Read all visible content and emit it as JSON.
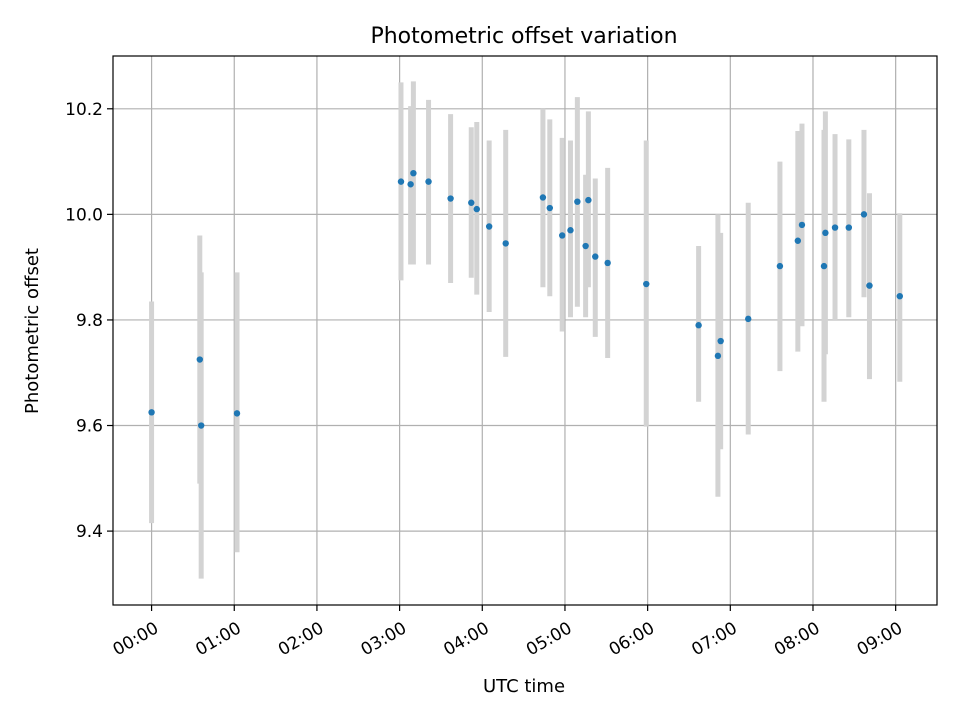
{
  "chart_data": {
    "type": "scatter",
    "title": "Photometric offset variation",
    "xlabel": "UTC time",
    "ylabel": "Photometric offset",
    "x_unit": "hours UTC",
    "xlim": [
      "-0:28",
      "9:30"
    ],
    "ylim": [
      9.26,
      10.3
    ],
    "x_ticks": [
      "00:00",
      "01:00",
      "02:00",
      "03:00",
      "04:00",
      "05:00",
      "06:00",
      "07:00",
      "08:00",
      "09:00"
    ],
    "y_ticks": [
      "9.4",
      "9.6",
      "9.8",
      "10.0",
      "10.2"
    ],
    "grid": true,
    "colors": {
      "point": "#1f77b4",
      "errorbar": "#d3d3d3",
      "grid": "#b0b0b0",
      "axes": "#000000"
    },
    "points": [
      {
        "x": "0:00",
        "y": 9.625,
        "ylo": 9.415,
        "yhi": 9.835
      },
      {
        "x": "0:35",
        "y": 9.725,
        "ylo": 9.49,
        "yhi": 9.96
      },
      {
        "x": "0:36",
        "y": 9.6,
        "ylo": 9.31,
        "yhi": 9.89
      },
      {
        "x": "1:02",
        "y": 9.623,
        "ylo": 9.36,
        "yhi": 9.89
      },
      {
        "x": "3:01",
        "y": 10.062,
        "ylo": 9.875,
        "yhi": 10.25
      },
      {
        "x": "3:08",
        "y": 10.057,
        "ylo": 9.905,
        "yhi": 10.205
      },
      {
        "x": "3:10",
        "y": 10.078,
        "ylo": 9.905,
        "yhi": 10.252
      },
      {
        "x": "3:21",
        "y": 10.062,
        "ylo": 9.905,
        "yhi": 10.217
      },
      {
        "x": "3:37",
        "y": 10.03,
        "ylo": 9.87,
        "yhi": 10.19
      },
      {
        "x": "3:52",
        "y": 10.022,
        "ylo": 9.88,
        "yhi": 10.165
      },
      {
        "x": "3:56",
        "y": 10.01,
        "ylo": 9.848,
        "yhi": 10.175
      },
      {
        "x": "4:05",
        "y": 9.977,
        "ylo": 9.815,
        "yhi": 10.14
      },
      {
        "x": "4:17",
        "y": 9.945,
        "ylo": 9.73,
        "yhi": 10.16
      },
      {
        "x": "4:44",
        "y": 10.032,
        "ylo": 9.862,
        "yhi": 10.2
      },
      {
        "x": "4:49",
        "y": 10.012,
        "ylo": 9.845,
        "yhi": 10.18
      },
      {
        "x": "4:58",
        "y": 9.96,
        "ylo": 9.778,
        "yhi": 10.145
      },
      {
        "x": "5:04",
        "y": 9.97,
        "ylo": 9.805,
        "yhi": 10.14
      },
      {
        "x": "5:09",
        "y": 10.024,
        "ylo": 9.825,
        "yhi": 10.222
      },
      {
        "x": "5:15",
        "y": 9.94,
        "ylo": 9.805,
        "yhi": 10.075
      },
      {
        "x": "5:17",
        "y": 10.027,
        "ylo": 9.862,
        "yhi": 10.195
      },
      {
        "x": "5:22",
        "y": 9.92,
        "ylo": 9.768,
        "yhi": 10.068
      },
      {
        "x": "5:31",
        "y": 9.908,
        "ylo": 9.728,
        "yhi": 10.088
      },
      {
        "x": "5:59",
        "y": 9.868,
        "ylo": 9.598,
        "yhi": 10.14
      },
      {
        "x": "6:37",
        "y": 9.79,
        "ylo": 9.645,
        "yhi": 9.94
      },
      {
        "x": "6:51",
        "y": 9.732,
        "ylo": 9.465,
        "yhi": 10.0
      },
      {
        "x": "6:53",
        "y": 9.76,
        "ylo": 9.555,
        "yhi": 9.965
      },
      {
        "x": "7:13",
        "y": 9.802,
        "ylo": 9.583,
        "yhi": 10.022
      },
      {
        "x": "7:36",
        "y": 9.902,
        "ylo": 9.703,
        "yhi": 10.1
      },
      {
        "x": "7:49",
        "y": 9.95,
        "ylo": 9.74,
        "yhi": 10.158
      },
      {
        "x": "7:52",
        "y": 9.98,
        "ylo": 9.788,
        "yhi": 10.172
      },
      {
        "x": "8:08",
        "y": 9.902,
        "ylo": 9.645,
        "yhi": 10.16
      },
      {
        "x": "8:09",
        "y": 9.965,
        "ylo": 9.735,
        "yhi": 10.195
      },
      {
        "x": "8:16",
        "y": 9.975,
        "ylo": 9.8,
        "yhi": 10.152
      },
      {
        "x": "8:26",
        "y": 9.975,
        "ylo": 9.805,
        "yhi": 10.142
      },
      {
        "x": "8:37",
        "y": 10.0,
        "ylo": 9.843,
        "yhi": 10.16
      },
      {
        "x": "8:41",
        "y": 9.865,
        "ylo": 9.688,
        "yhi": 10.04
      },
      {
        "x": "9:03",
        "y": 9.845,
        "ylo": 9.683,
        "yhi": 10.002
      }
    ]
  }
}
